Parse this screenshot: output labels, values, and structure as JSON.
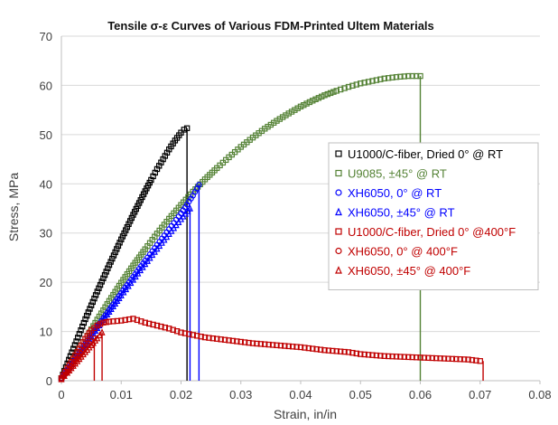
{
  "chart_data": {
    "type": "scatter",
    "title": "Tensile σ-ε Curves of Various FDM-Printed Ultem Materials",
    "xlabel": "Strain, in/in",
    "ylabel": "Stress, MPa",
    "xlim": [
      0,
      0.08
    ],
    "ylim": [
      0,
      70
    ],
    "x_ticks": [
      "0",
      "0.01",
      "0.02",
      "0.03",
      "0.04",
      "0.05",
      "0.06",
      "0.07",
      "0.08"
    ],
    "y_ticks": [
      "0",
      "10",
      "20",
      "30",
      "40",
      "50",
      "60",
      "70"
    ],
    "grid": "horizontal",
    "legend_position": "right-middle",
    "series": [
      {
        "name": "U1000/C-fiber, Dried 0° @ RT",
        "marker": "square",
        "color": "#000000",
        "x": [
          0,
          0.001,
          0.002,
          0.003,
          0.004,
          0.005,
          0.006,
          0.007,
          0.008,
          0.009,
          0.01,
          0.011,
          0.012,
          0.013,
          0.014,
          0.015,
          0.016,
          0.017,
          0.018,
          0.019,
          0.02,
          0.0205,
          0.021
        ],
        "y": [
          0.5,
          3.5,
          6.5,
          9.5,
          12.5,
          15.3,
          18.1,
          20.8,
          23.5,
          26.1,
          28.7,
          31.2,
          33.7,
          36.1,
          38.5,
          40.8,
          43.0,
          45.0,
          47.0,
          48.8,
          50.4,
          51.0,
          51.3
        ],
        "failure_strain": 0.021
      },
      {
        "name": "U9085, ±45° @ RT",
        "marker": "square",
        "color": "#548235",
        "x": [
          0,
          0.002,
          0.004,
          0.006,
          0.008,
          0.01,
          0.012,
          0.014,
          0.016,
          0.018,
          0.02,
          0.022,
          0.024,
          0.026,
          0.028,
          0.03,
          0.032,
          0.034,
          0.036,
          0.038,
          0.04,
          0.042,
          0.044,
          0.046,
          0.048,
          0.05,
          0.052,
          0.054,
          0.056,
          0.058,
          0.06
        ],
        "y": [
          0.5,
          4.5,
          8.5,
          12.4,
          16.2,
          19.9,
          23.4,
          26.7,
          29.9,
          32.9,
          35.7,
          38.4,
          40.9,
          43.2,
          45.4,
          47.5,
          49.4,
          51.2,
          52.8,
          54.3,
          55.7,
          56.9,
          58.0,
          58.9,
          59.7,
          60.4,
          60.9,
          61.4,
          61.7,
          61.9,
          61.9
        ],
        "failure_strain": 0.06
      },
      {
        "name": "XH6050, 0° @ RT",
        "marker": "circle",
        "color": "#0000FF",
        "x": [
          0,
          0.002,
          0.004,
          0.006,
          0.008,
          0.01,
          0.012,
          0.014,
          0.016,
          0.018,
          0.02,
          0.022,
          0.023
        ],
        "y": [
          0.5,
          4.0,
          7.5,
          11.0,
          14.4,
          17.8,
          21.1,
          24.4,
          27.6,
          30.8,
          34.0,
          37.6,
          39.8
        ],
        "failure_strain": 0.023
      },
      {
        "name": "XH6050, ±45° @ RT",
        "marker": "triangle",
        "color": "#0000FF",
        "x": [
          0,
          0.002,
          0.004,
          0.006,
          0.008,
          0.01,
          0.012,
          0.014,
          0.016,
          0.018,
          0.02,
          0.0215
        ],
        "y": [
          0.5,
          3.9,
          7.3,
          10.7,
          14.0,
          17.3,
          20.5,
          23.7,
          26.8,
          29.8,
          32.8,
          35.0
        ],
        "failure_strain": 0.0215
      },
      {
        "name": "U1000/C-fiber, Dried 0° @400°F",
        "marker": "square",
        "color": "#C00000",
        "x": [
          0,
          0.001,
          0.002,
          0.003,
          0.004,
          0.005,
          0.006,
          0.007,
          0.008,
          0.01,
          0.012,
          0.014,
          0.016,
          0.018,
          0.02,
          0.022,
          0.024,
          0.026,
          0.028,
          0.03,
          0.032,
          0.034,
          0.036,
          0.038,
          0.04,
          0.042,
          0.044,
          0.046,
          0.048,
          0.05,
          0.052,
          0.054,
          0.056,
          0.058,
          0.06,
          0.062,
          0.064,
          0.066,
          0.068,
          0.07
        ],
        "y": [
          0.5,
          2.5,
          4.5,
          6.5,
          8.5,
          10.2,
          11.2,
          11.8,
          12.0,
          12.2,
          12.6,
          11.8,
          11.2,
          10.6,
          9.8,
          9.3,
          8.8,
          8.5,
          8.2,
          7.9,
          7.6,
          7.4,
          7.2,
          7.0,
          6.8,
          6.5,
          6.2,
          6.0,
          5.8,
          5.4,
          5.2,
          5.0,
          4.9,
          4.8,
          4.7,
          4.6,
          4.5,
          4.4,
          4.3,
          4.0
        ],
        "failure_strain": 0.0705
      },
      {
        "name": "XH6050, 0° @ 400°F",
        "marker": "circle",
        "color": "#C00000",
        "x": [
          0,
          0.001,
          0.002,
          0.003,
          0.004,
          0.005,
          0.0055
        ],
        "y": [
          0.3,
          1.8,
          3.4,
          5.0,
          6.6,
          8.0,
          8.6
        ],
        "failure_strain": 0.0055
      },
      {
        "name": "XH6050, ±45° @ 400°F",
        "marker": "triangle",
        "color": "#C00000",
        "x": [
          0,
          0.001,
          0.002,
          0.003,
          0.004,
          0.005,
          0.006,
          0.0068
        ],
        "y": [
          0.3,
          1.6,
          3.0,
          4.4,
          5.8,
          7.2,
          8.6,
          9.8
        ],
        "failure_strain": 0.0068
      }
    ]
  }
}
